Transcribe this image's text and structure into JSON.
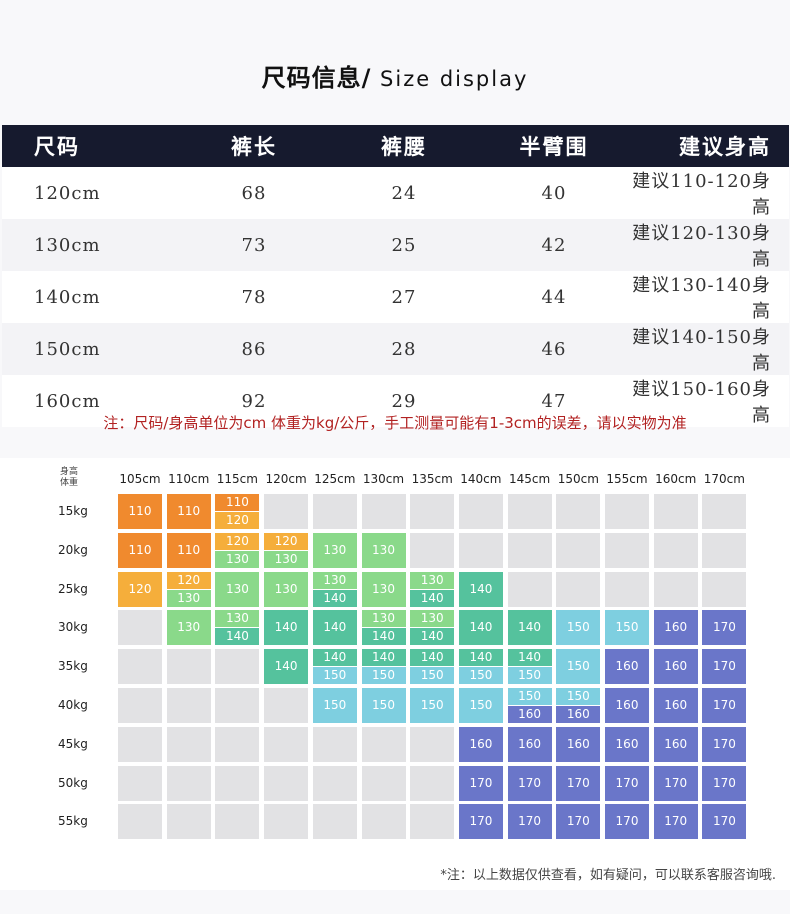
{
  "title": {
    "cn": "尺码信息/",
    "en": " Size display"
  },
  "size_table": {
    "headers": [
      "尺码",
      "裤长",
      "裤腰",
      "半臂围",
      "建议身高"
    ],
    "rows": [
      [
        "120cm",
        "68",
        "24",
        "40",
        "建议110-120身高"
      ],
      [
        "130cm",
        "73",
        "25",
        "42",
        "建议120-130身高"
      ],
      [
        "140cm",
        "78",
        "27",
        "44",
        "建议130-140身高"
      ],
      [
        "150cm",
        "86",
        "28",
        "46",
        "建议140-150身高"
      ],
      [
        "160cm",
        "92",
        "29",
        "47",
        "建议150-160身高"
      ]
    ]
  },
  "note": "注：尺码/身高单位为cm 体重为kg/公斤，手工测量可能有1-3cm的误差，请以实物为准",
  "grid": {
    "corner_top": "身高",
    "corner_bottom": "体重",
    "heights": [
      "105cm",
      "110cm",
      "115cm",
      "120cm",
      "125cm",
      "130cm",
      "135cm",
      "140cm",
      "145cm",
      "150cm",
      "155cm",
      "160cm",
      "170cm"
    ],
    "weights": [
      "15kg",
      "20kg",
      "25kg",
      "30kg",
      "35kg",
      "40kg",
      "45kg",
      "50kg",
      "55kg"
    ],
    "colors": {
      "110": "#f08a2e",
      "120": "#f5ae3b",
      "130": "#8ad98a",
      "140": "#55c29d",
      "150": "#7ecfe0",
      "160": "#6a76c9",
      "170": "#6a76c9",
      "empty": "#e2e2e4"
    },
    "cells": [
      [
        [
          "110"
        ],
        [
          "110"
        ],
        [
          "110",
          "120"
        ],
        [],
        [],
        [],
        [],
        [],
        [],
        [],
        [],
        [],
        []
      ],
      [
        [
          "110"
        ],
        [
          "110"
        ],
        [
          "120",
          "130"
        ],
        [
          "120",
          "130"
        ],
        [
          "130"
        ],
        [
          "130"
        ],
        [],
        [],
        [],
        [],
        [],
        [],
        []
      ],
      [
        [
          "120"
        ],
        [
          "120",
          "130"
        ],
        [
          "130"
        ],
        [
          "130"
        ],
        [
          "130",
          "140"
        ],
        [
          "130"
        ],
        [
          "130",
          "140"
        ],
        [
          "140"
        ],
        [],
        [],
        [],
        [],
        []
      ],
      [
        [],
        [
          "130"
        ],
        [
          "130",
          "140"
        ],
        [
          "140"
        ],
        [
          "140"
        ],
        [
          "130",
          "140"
        ],
        [
          "130",
          "140"
        ],
        [
          "140"
        ],
        [
          "140"
        ],
        [
          "150"
        ],
        [
          "150"
        ],
        [
          "160"
        ],
        [
          "170"
        ]
      ],
      [
        [],
        [],
        [],
        [
          "140"
        ],
        [
          "140",
          "150"
        ],
        [
          "140",
          "150"
        ],
        [
          "140",
          "150"
        ],
        [
          "140",
          "150"
        ],
        [
          "140",
          "150"
        ],
        [
          "150"
        ],
        [
          "160"
        ],
        [
          "160"
        ],
        [
          "170"
        ]
      ],
      [
        [],
        [],
        [],
        [],
        [
          "150"
        ],
        [
          "150"
        ],
        [
          "150"
        ],
        [
          "150"
        ],
        [
          "150",
          "160"
        ],
        [
          "150",
          "160"
        ],
        [
          "160"
        ],
        [
          "160"
        ],
        [
          "170"
        ]
      ],
      [
        [],
        [],
        [],
        [],
        [],
        [],
        [],
        [
          "160"
        ],
        [
          "160"
        ],
        [
          "160"
        ],
        [
          "160"
        ],
        [
          "160"
        ],
        [
          "170"
        ]
      ],
      [
        [],
        [],
        [],
        [],
        [],
        [],
        [],
        [
          "170"
        ],
        [
          "170"
        ],
        [
          "170"
        ],
        [
          "170"
        ],
        [
          "170"
        ],
        [
          "170"
        ]
      ],
      [
        [],
        [],
        [],
        [],
        [],
        [],
        [],
        [
          "170"
        ],
        [
          "170"
        ],
        [
          "170"
        ],
        [
          "170"
        ],
        [
          "170"
        ],
        [
          "170"
        ]
      ]
    ]
  },
  "footnote": "*注：以上数据仅供查看，如有疑问，可以联系客服咨询哦."
}
